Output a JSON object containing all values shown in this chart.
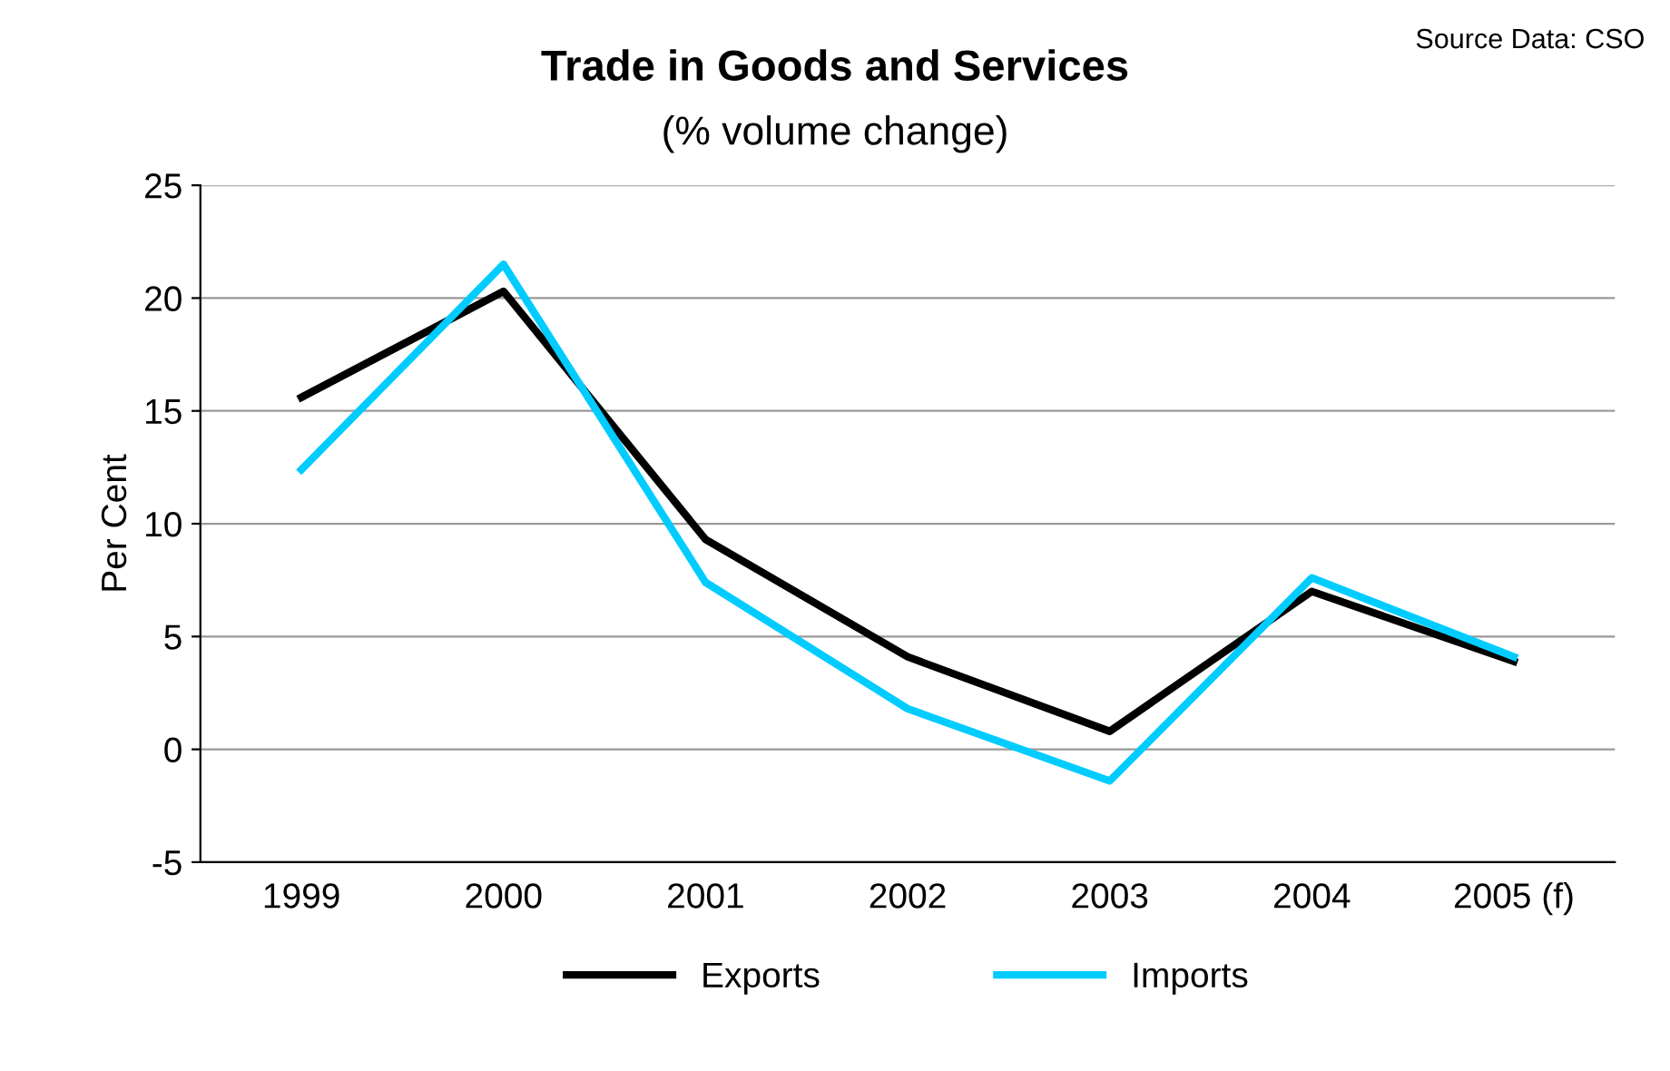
{
  "chart_data": {
    "type": "line",
    "title": "Trade in Goods and Services",
    "subtitle": "(% volume change)",
    "ylabel": "Per Cent",
    "annotations": [
      "Source Data: CSO"
    ],
    "categories": [
      "1999",
      "2000",
      "2001",
      "2002",
      "2003",
      "2004",
      "2005 (f)"
    ],
    "series": [
      {
        "name": "Exports",
        "color": "#000000",
        "values": [
          15.6,
          20.3,
          9.3,
          4.1,
          0.8,
          7.0,
          3.9
        ]
      },
      {
        "name": "Imports",
        "color": "#00ccff",
        "values": [
          12.4,
          21.5,
          7.4,
          1.8,
          -1.4,
          7.6,
          4.1
        ]
      }
    ],
    "ylim": [
      -5,
      25
    ],
    "yticks": [
      -5,
      0,
      5,
      10,
      15,
      20,
      25
    ],
    "grid": "y",
    "legend": "bottom",
    "marker": "none",
    "line_style": "solid"
  }
}
